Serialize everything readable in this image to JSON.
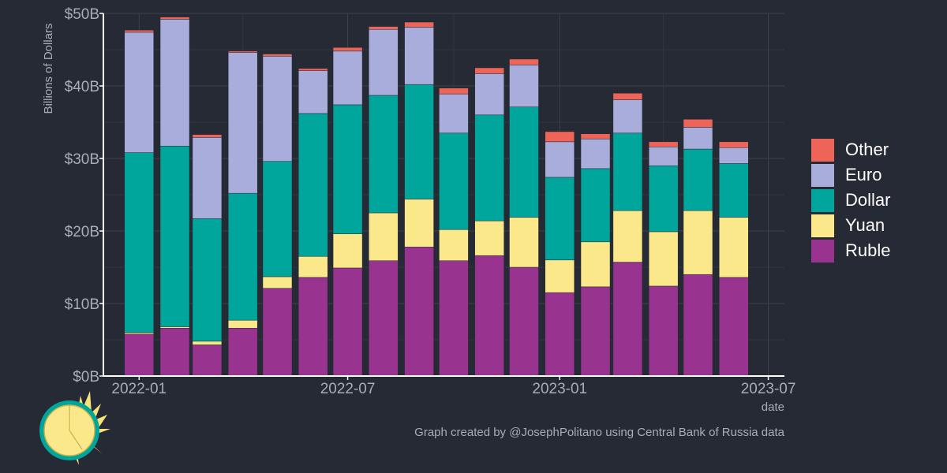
{
  "caption": "Graph created by @JosephPolitano using Central Bank of Russia data",
  "colors": {
    "Other": "#ef6459",
    "Euro": "#a9addc",
    "Dollar": "#00a69b",
    "Yuan": "#fbe88b",
    "Ruble": "#98338f",
    "background": "#252a34",
    "axis": "#ffffff",
    "grid": "#3d424c",
    "tick_text": "#a9adb5"
  },
  "legend": {
    "items": [
      {
        "label": "Other",
        "color": "#ef6459"
      },
      {
        "label": "Euro",
        "color": "#a9addc"
      },
      {
        "label": "Dollar",
        "color": "#00a69b"
      },
      {
        "label": "Yuan",
        "color": "#fbe88b"
      },
      {
        "label": "Ruble",
        "color": "#98338f"
      }
    ]
  },
  "logo": {
    "icon": "sun-logo-icon"
  },
  "chart_data": {
    "type": "bar",
    "stacked": true,
    "title": "",
    "xlabel": "date",
    "ylabel": "Billions of Dollars",
    "ylim": [
      0,
      50
    ],
    "yticks": [
      0,
      10,
      20,
      30,
      40,
      50
    ],
    "ytick_labels": [
      "$0B",
      "$10B",
      "$20B",
      "$30B",
      "$40B",
      "$50B"
    ],
    "xrange": [
      "2021-12-01",
      "2023-07-15"
    ],
    "xticks": [
      "2022-01-01",
      "2022-07-01",
      "2023-01-01",
      "2023-07-01"
    ],
    "xtick_labels": [
      "2022-01",
      "2022-07",
      "2023-01",
      "2023-07"
    ],
    "grid": true,
    "legend_position": "right",
    "categories": [
      "2022-01",
      "2022-02",
      "2022-03",
      "2022-04",
      "2022-05",
      "2022-06",
      "2022-07",
      "2022-08",
      "2022-09",
      "2022-10",
      "2022-11",
      "2022-12",
      "2023-01",
      "2023-02",
      "2023-03",
      "2023-04",
      "2023-05",
      "2023-06"
    ],
    "series": [
      {
        "name": "Ruble",
        "values": [
          5.8,
          6.6,
          4.3,
          6.6,
          12.1,
          13.6,
          14.9,
          15.9,
          17.8,
          15.9,
          16.6,
          15.0,
          11.5,
          12.3,
          15.7,
          12.4,
          14.0,
          13.6
        ]
      },
      {
        "name": "Yuan",
        "values": [
          0.2,
          0.2,
          0.5,
          1.1,
          1.6,
          2.9,
          4.7,
          6.6,
          6.6,
          4.3,
          4.8,
          6.9,
          4.5,
          6.2,
          7.1,
          7.5,
          8.8,
          8.3
        ]
      },
      {
        "name": "Dollar",
        "values": [
          24.8,
          24.9,
          16.9,
          17.5,
          15.9,
          19.7,
          17.8,
          16.2,
          15.8,
          13.3,
          14.6,
          15.2,
          11.4,
          10.1,
          10.7,
          9.1,
          8.5,
          7.4
        ]
      },
      {
        "name": "Euro",
        "values": [
          16.6,
          17.5,
          11.2,
          19.4,
          14.5,
          5.9,
          7.4,
          9.1,
          7.9,
          5.4,
          5.7,
          5.8,
          4.9,
          4.1,
          4.6,
          2.6,
          3.0,
          2.2
        ]
      },
      {
        "name": "Other",
        "values": [
          0.3,
          0.3,
          0.4,
          0.2,
          0.3,
          0.3,
          0.5,
          0.4,
          0.7,
          0.8,
          0.8,
          0.8,
          1.4,
          0.7,
          0.9,
          0.7,
          1.1,
          0.8
        ]
      }
    ]
  }
}
